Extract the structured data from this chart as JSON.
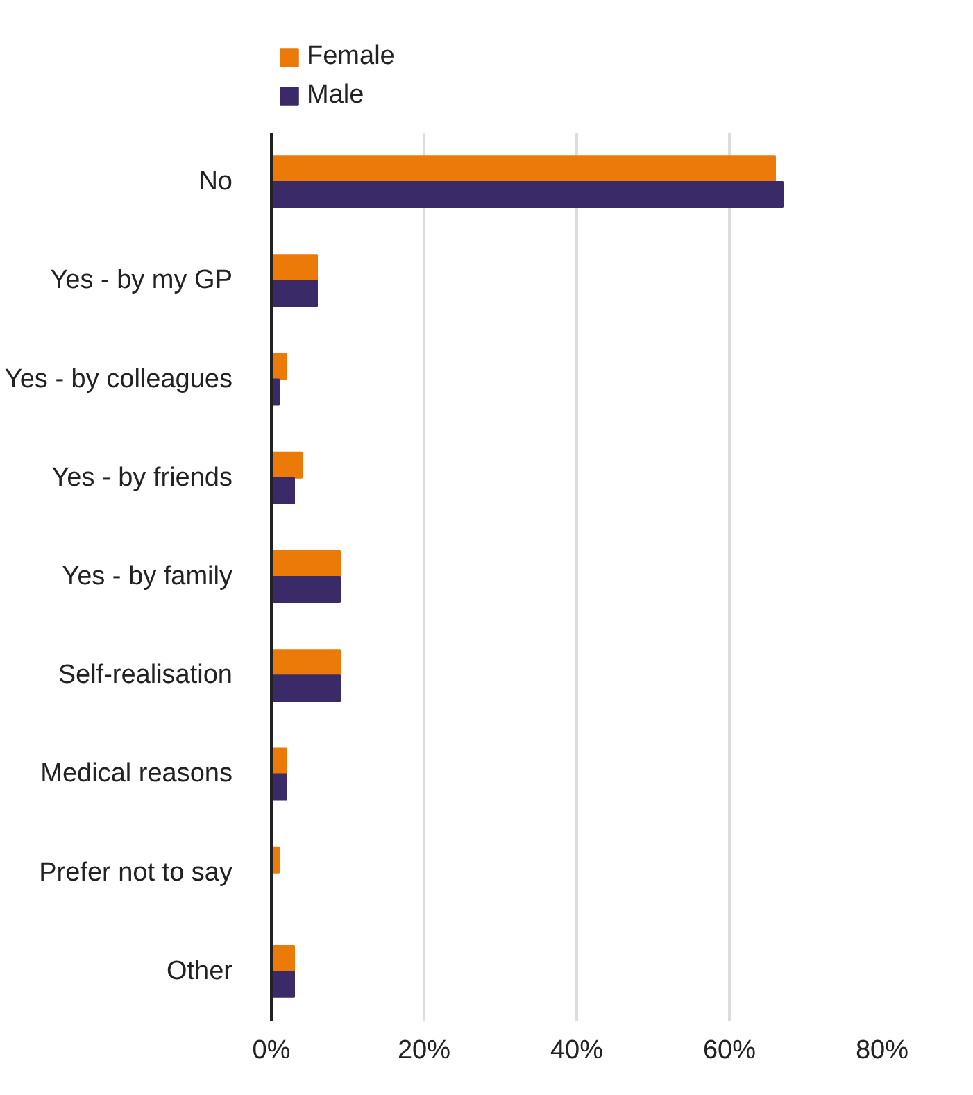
{
  "chart_data": {
    "type": "bar",
    "orientation": "horizontal",
    "categories": [
      "No",
      "Yes - by my GP",
      "Yes - by colleagues",
      "Yes - by friends",
      "Yes - by family",
      "Self-realisation",
      "Medical reasons",
      "Prefer not to say",
      "Other"
    ],
    "series": [
      {
        "name": "Female",
        "color": "#ec7a08",
        "values": [
          66,
          6,
          2,
          4,
          9,
          9,
          2,
          1,
          3
        ]
      },
      {
        "name": "Male",
        "color": "#3b2a68",
        "values": [
          67,
          6,
          1,
          3,
          9,
          9,
          2,
          0,
          3
        ]
      }
    ],
    "xlim": [
      0,
      80
    ],
    "xticks": [
      {
        "value": 0,
        "label": "0%"
      },
      {
        "value": 20,
        "label": "20%"
      },
      {
        "value": 40,
        "label": "40%"
      },
      {
        "value": 60,
        "label": "60%"
      },
      {
        "value": 80,
        "label": "80%"
      }
    ],
    "grid": "x",
    "legend": "top"
  }
}
